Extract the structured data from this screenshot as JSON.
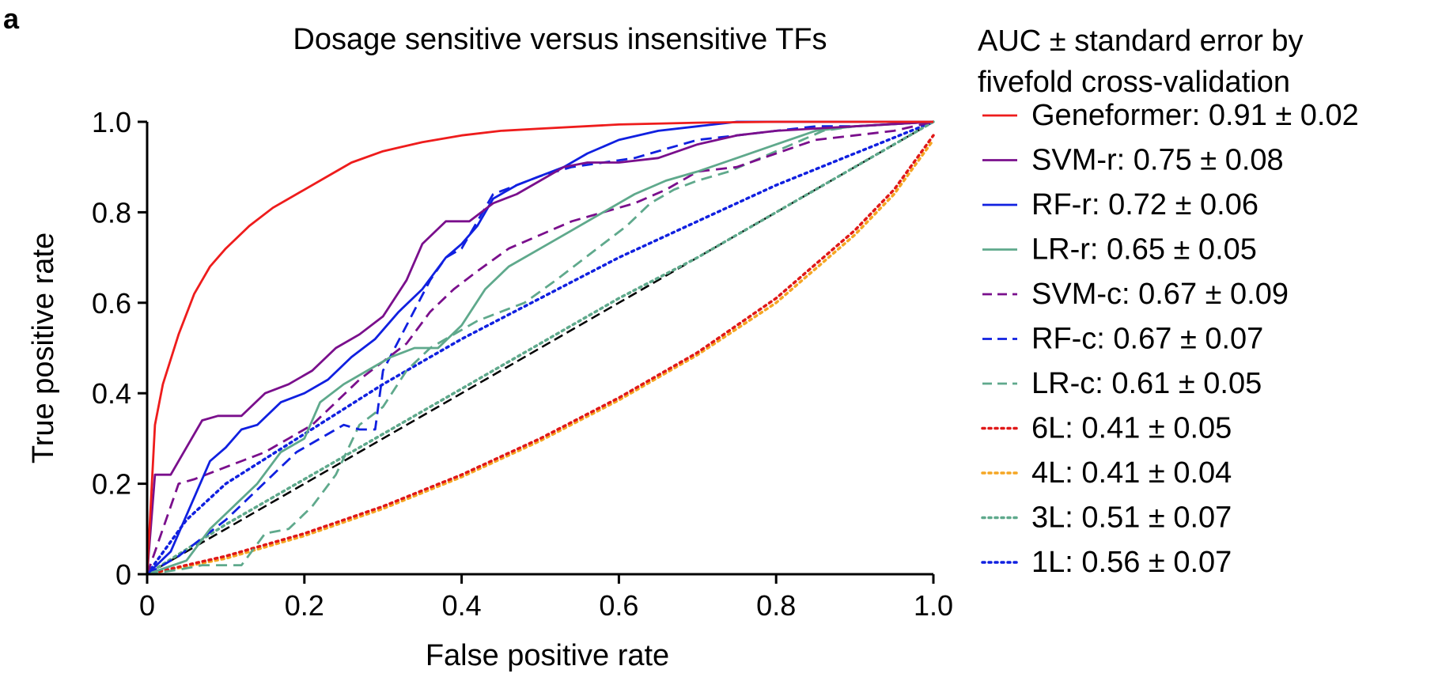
{
  "panel_label": "a",
  "chart_data": {
    "type": "line",
    "title": "Dosage sensitive versus insensitive TFs",
    "xlabel": "False positive rate",
    "ylabel": "True positive rate",
    "xlim": [
      0,
      1
    ],
    "ylim": [
      0,
      1
    ],
    "xticks": [
      "0",
      "0.2",
      "0.4",
      "0.6",
      "0.8",
      "1.0"
    ],
    "yticks": [
      "0",
      "0.2",
      "0.4",
      "0.6",
      "0.8",
      "1.0"
    ],
    "grid": false,
    "legend_position": "right",
    "legend_title": [
      "AUC ± standard error by",
      "fivefold cross-validation"
    ],
    "diagonal": {
      "style": "dashed",
      "color": "#000000"
    },
    "series": [
      {
        "name": "Geneformer: 0.91 ± 0.02",
        "color": "#ee1c1c",
        "style": "solid",
        "x": [
          0,
          0.01,
          0.02,
          0.04,
          0.06,
          0.08,
          0.1,
          0.13,
          0.16,
          0.2,
          0.23,
          0.26,
          0.3,
          0.35,
          0.4,
          0.45,
          0.5,
          0.6,
          0.7,
          0.8,
          0.9,
          1.0
        ],
        "y": [
          0,
          0.33,
          0.42,
          0.53,
          0.62,
          0.68,
          0.72,
          0.77,
          0.81,
          0.85,
          0.88,
          0.91,
          0.935,
          0.955,
          0.97,
          0.98,
          0.985,
          0.994,
          0.998,
          1.0,
          1.0,
          1.0
        ]
      },
      {
        "name": "SVM-r: 0.75 ± 0.08",
        "color": "#7a0f8c",
        "style": "solid",
        "x": [
          0,
          0.01,
          0.03,
          0.05,
          0.07,
          0.09,
          0.12,
          0.15,
          0.18,
          0.21,
          0.24,
          0.27,
          0.3,
          0.33,
          0.35,
          0.38,
          0.41,
          0.44,
          0.47,
          0.5,
          0.53,
          0.56,
          0.6,
          0.65,
          0.7,
          0.75,
          0.8,
          0.9,
          1.0
        ],
        "y": [
          0,
          0.22,
          0.22,
          0.28,
          0.34,
          0.35,
          0.35,
          0.4,
          0.42,
          0.45,
          0.5,
          0.53,
          0.57,
          0.65,
          0.73,
          0.78,
          0.78,
          0.82,
          0.84,
          0.87,
          0.9,
          0.91,
          0.91,
          0.92,
          0.95,
          0.97,
          0.98,
          0.99,
          1.0
        ]
      },
      {
        "name": "RF-r: 0.72 ± 0.06",
        "color": "#1020e0",
        "style": "solid",
        "x": [
          0,
          0.03,
          0.06,
          0.08,
          0.1,
          0.12,
          0.14,
          0.17,
          0.2,
          0.23,
          0.26,
          0.29,
          0.32,
          0.35,
          0.38,
          0.4,
          0.42,
          0.44,
          0.47,
          0.5,
          0.53,
          0.56,
          0.6,
          0.65,
          0.7,
          0.75,
          0.8,
          0.9,
          1.0
        ],
        "y": [
          0,
          0.05,
          0.17,
          0.25,
          0.28,
          0.32,
          0.33,
          0.38,
          0.4,
          0.43,
          0.48,
          0.52,
          0.58,
          0.63,
          0.7,
          0.73,
          0.77,
          0.83,
          0.86,
          0.88,
          0.9,
          0.93,
          0.96,
          0.98,
          0.99,
          1.0,
          1.0,
          1.0,
          1.0
        ]
      },
      {
        "name": "LR-r: 0.65 ± 0.05",
        "color": "#5fa98c",
        "style": "solid",
        "x": [
          0,
          0.05,
          0.08,
          0.11,
          0.14,
          0.17,
          0.2,
          0.22,
          0.25,
          0.28,
          0.31,
          0.34,
          0.37,
          0.4,
          0.43,
          0.46,
          0.5,
          0.54,
          0.58,
          0.62,
          0.66,
          0.7,
          0.75,
          0.8,
          0.85,
          0.9,
          1.0
        ],
        "y": [
          0,
          0.03,
          0.1,
          0.15,
          0.2,
          0.27,
          0.3,
          0.38,
          0.42,
          0.45,
          0.48,
          0.5,
          0.5,
          0.55,
          0.63,
          0.68,
          0.72,
          0.76,
          0.8,
          0.84,
          0.87,
          0.89,
          0.92,
          0.95,
          0.98,
          0.99,
          1.0
        ]
      },
      {
        "name": "SVM-c: 0.67 ± 0.09",
        "color": "#7a0f8c",
        "style": "dashed",
        "x": [
          0,
          0.02,
          0.04,
          0.06,
          0.09,
          0.12,
          0.15,
          0.18,
          0.21,
          0.24,
          0.27,
          0.3,
          0.33,
          0.36,
          0.39,
          0.42,
          0.46,
          0.5,
          0.54,
          0.58,
          0.62,
          0.66,
          0.7,
          0.75,
          0.8,
          0.85,
          0.9,
          0.95,
          1.0
        ],
        "y": [
          0,
          0.1,
          0.2,
          0.21,
          0.23,
          0.25,
          0.27,
          0.3,
          0.33,
          0.38,
          0.43,
          0.47,
          0.51,
          0.58,
          0.63,
          0.67,
          0.72,
          0.75,
          0.78,
          0.8,
          0.82,
          0.85,
          0.89,
          0.9,
          0.93,
          0.96,
          0.97,
          0.98,
          1.0
        ]
      },
      {
        "name": "RF-c: 0.67 ± 0.07",
        "color": "#1020e0",
        "style": "dashed",
        "x": [
          0,
          0.04,
          0.07,
          0.1,
          0.13,
          0.16,
          0.19,
          0.22,
          0.25,
          0.27,
          0.29,
          0.3,
          0.33,
          0.36,
          0.38,
          0.4,
          0.42,
          0.44,
          0.47,
          0.5,
          0.54,
          0.58,
          0.62,
          0.66,
          0.7,
          0.75,
          0.8,
          0.85,
          0.9,
          1.0
        ],
        "y": [
          0,
          0.04,
          0.08,
          0.12,
          0.17,
          0.22,
          0.27,
          0.3,
          0.33,
          0.32,
          0.32,
          0.45,
          0.55,
          0.65,
          0.7,
          0.72,
          0.78,
          0.84,
          0.86,
          0.88,
          0.9,
          0.91,
          0.92,
          0.94,
          0.96,
          0.97,
          0.98,
          0.99,
          0.99,
          1.0
        ]
      },
      {
        "name": "LR-c: 0.61 ± 0.05",
        "color": "#5fa98c",
        "style": "dashed",
        "x": [
          0,
          0.04,
          0.07,
          0.1,
          0.12,
          0.15,
          0.18,
          0.21,
          0.24,
          0.27,
          0.3,
          0.33,
          0.36,
          0.39,
          0.42,
          0.45,
          0.48,
          0.52,
          0.55,
          0.58,
          0.61,
          0.64,
          0.67,
          0.7,
          0.74,
          0.78,
          0.82,
          0.86,
          0.9,
          1.0
        ],
        "y": [
          0,
          0.01,
          0.02,
          0.02,
          0.02,
          0.09,
          0.1,
          0.15,
          0.22,
          0.33,
          0.37,
          0.45,
          0.5,
          0.53,
          0.56,
          0.58,
          0.6,
          0.65,
          0.69,
          0.73,
          0.77,
          0.82,
          0.85,
          0.87,
          0.89,
          0.92,
          0.95,
          0.98,
          0.99,
          1.0
        ]
      },
      {
        "name": "6L: 0.41 ± 0.05",
        "color": "#e01818",
        "style": "dotted",
        "x": [
          0,
          0.1,
          0.2,
          0.3,
          0.4,
          0.5,
          0.6,
          0.7,
          0.8,
          0.9,
          0.95,
          1.0
        ],
        "y": [
          0,
          0.04,
          0.09,
          0.15,
          0.22,
          0.3,
          0.39,
          0.49,
          0.61,
          0.76,
          0.85,
          0.97
        ]
      },
      {
        "name": "4L: 0.41 ± 0.04",
        "color": "#f5a623",
        "style": "dotted",
        "x": [
          0,
          0.1,
          0.2,
          0.3,
          0.4,
          0.5,
          0.6,
          0.7,
          0.8,
          0.9,
          0.95,
          1.0
        ],
        "y": [
          0,
          0.035,
          0.085,
          0.145,
          0.215,
          0.295,
          0.385,
          0.485,
          0.6,
          0.75,
          0.84,
          0.96
        ]
      },
      {
        "name": "3L: 0.51 ± 0.07",
        "color": "#5fa98c",
        "style": "dotted",
        "x": [
          0,
          0.1,
          0.2,
          0.3,
          0.4,
          0.5,
          0.6,
          0.7,
          0.8,
          0.9,
          1.0
        ],
        "y": [
          0,
          0.11,
          0.21,
          0.31,
          0.41,
          0.51,
          0.61,
          0.7,
          0.8,
          0.9,
          1.0
        ]
      },
      {
        "name": "1L: 0.56 ± 0.07",
        "color": "#1020e0",
        "style": "dotted",
        "x": [
          0,
          0.05,
          0.1,
          0.2,
          0.3,
          0.4,
          0.5,
          0.6,
          0.7,
          0.8,
          0.9,
          1.0
        ],
        "y": [
          0,
          0.12,
          0.2,
          0.31,
          0.42,
          0.52,
          0.61,
          0.7,
          0.78,
          0.86,
          0.93,
          1.0
        ]
      }
    ]
  }
}
